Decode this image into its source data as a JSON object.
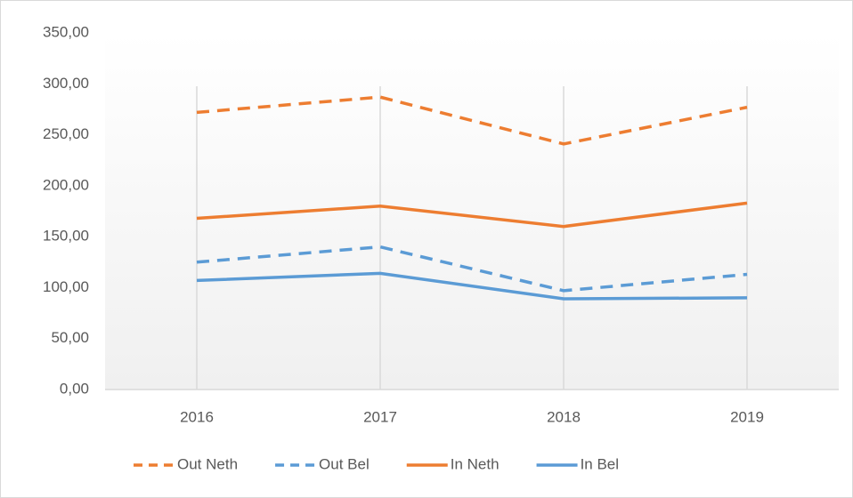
{
  "chart_data": {
    "type": "line",
    "categories": [
      "2016",
      "2017",
      "2018",
      "2019"
    ],
    "series": [
      {
        "name": "Out Neth",
        "color": "#ed7d31",
        "dashed": true,
        "values": [
          272,
          287,
          241,
          277
        ]
      },
      {
        "name": "Out Bel",
        "color": "#5b9bd5",
        "dashed": true,
        "values": [
          125,
          140,
          97,
          113
        ]
      },
      {
        "name": "In Neth",
        "color": "#ed7d31",
        "dashed": false,
        "values": [
          168,
          180,
          160,
          183
        ]
      },
      {
        "name": "In Bel",
        "color": "#5b9bd5",
        "dashed": false,
        "values": [
          107,
          114,
          89,
          90
        ]
      }
    ],
    "ylim": [
      0,
      350
    ],
    "yticks": [
      {
        "value": 0,
        "label": "0,00"
      },
      {
        "value": 50,
        "label": "50,00"
      },
      {
        "value": 100,
        "label": "100,00"
      },
      {
        "value": 150,
        "label": "150,00"
      },
      {
        "value": 200,
        "label": "200,00"
      },
      {
        "value": 250,
        "label": "250,00"
      },
      {
        "value": 300,
        "label": "300,00"
      },
      {
        "value": 350,
        "label": "350,00"
      }
    ],
    "legend": "bottom"
  }
}
